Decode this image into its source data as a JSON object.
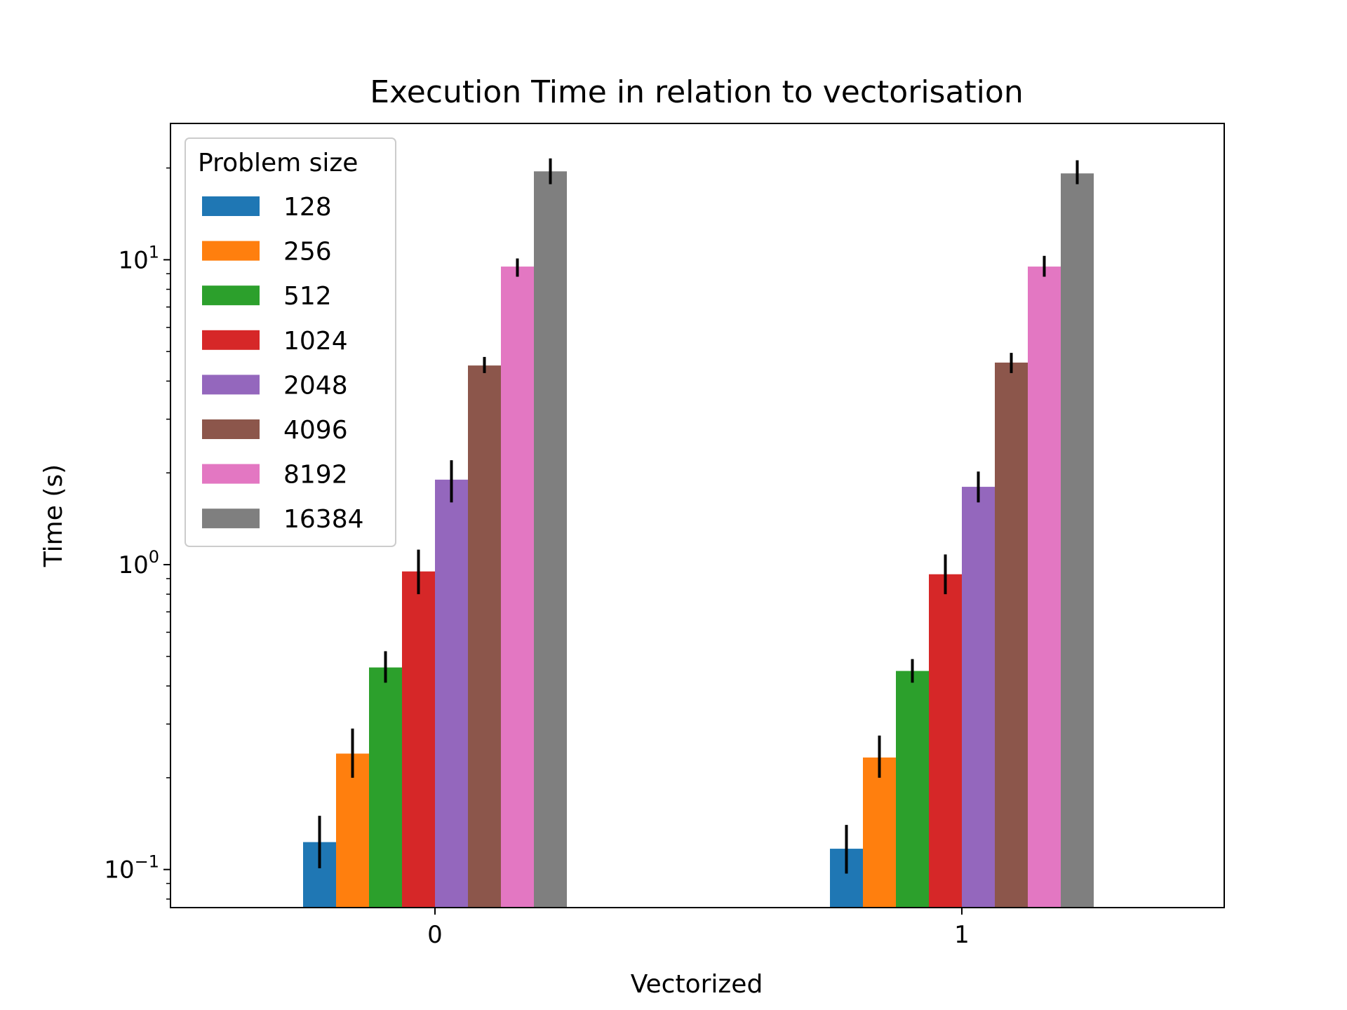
{
  "chart_data": {
    "type": "bar",
    "title": "Execution Time in relation to vectorisation",
    "xlabel": "Vectorized",
    "ylabel": "Time (s)",
    "yscale": "log",
    "ylim": [
      0.075,
      28
    ],
    "yticks": [
      {
        "value": 0.1,
        "base": "10",
        "exp": "−1"
      },
      {
        "value": 1,
        "base": "10",
        "exp": "0"
      },
      {
        "value": 10,
        "base": "10",
        "exp": "1"
      }
    ],
    "categories": [
      "0",
      "1"
    ],
    "legend": {
      "title": "Problem size",
      "placement": "upper-left"
    },
    "grid": false,
    "series": [
      {
        "name": "128",
        "color": "#1f77b4",
        "values": [
          0.123,
          0.117
        ],
        "err_low": [
          0.101,
          0.097
        ],
        "err_high": [
          0.15,
          0.14
        ]
      },
      {
        "name": "256",
        "color": "#ff7f0e",
        "values": [
          0.24,
          0.233
        ],
        "err_low": [
          0.2,
          0.2
        ],
        "err_high": [
          0.29,
          0.275
        ]
      },
      {
        "name": "512",
        "color": "#2ca02c",
        "values": [
          0.46,
          0.448
        ],
        "err_low": [
          0.41,
          0.41
        ],
        "err_high": [
          0.52,
          0.49
        ]
      },
      {
        "name": "1024",
        "color": "#d62728",
        "values": [
          0.95,
          0.93
        ],
        "err_low": [
          0.8,
          0.8
        ],
        "err_high": [
          1.12,
          1.08
        ]
      },
      {
        "name": "2048",
        "color": "#9467bd",
        "values": [
          1.9,
          1.8
        ],
        "err_low": [
          1.6,
          1.6
        ],
        "err_high": [
          2.2,
          2.02
        ]
      },
      {
        "name": "4096",
        "color": "#8c564b",
        "values": [
          4.5,
          4.6
        ],
        "err_low": [
          4.25,
          4.25
        ],
        "err_high": [
          4.8,
          4.95
        ]
      },
      {
        "name": "8192",
        "color": "#e377c2",
        "values": [
          9.5,
          9.5
        ],
        "err_low": [
          8.8,
          8.8
        ],
        "err_high": [
          10.1,
          10.3
        ]
      },
      {
        "name": "16384",
        "color": "#7f7f7f",
        "values": [
          19.5,
          19.2
        ],
        "err_low": [
          17.7,
          17.7
        ],
        "err_high": [
          21.5,
          21.2
        ]
      }
    ]
  }
}
